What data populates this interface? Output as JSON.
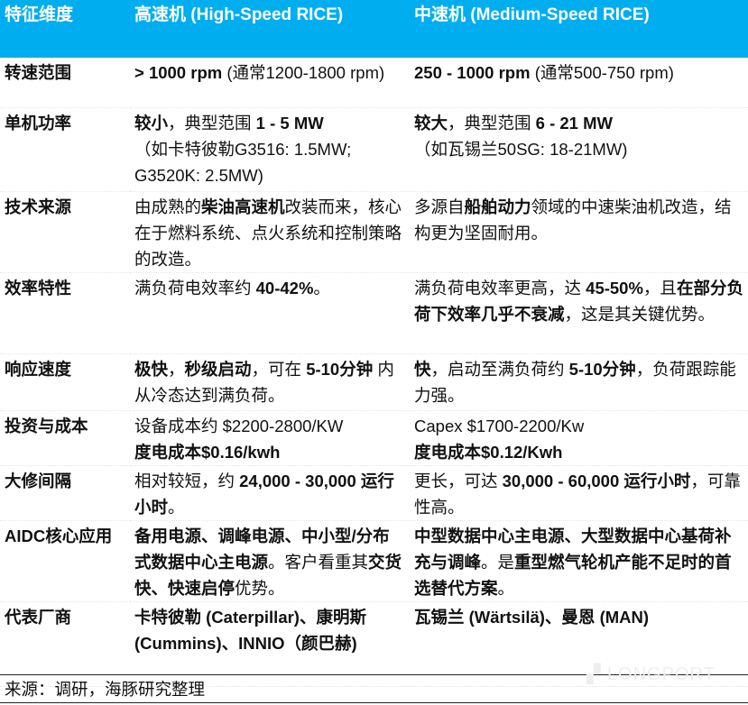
{
  "header": {
    "col1": "特征维度",
    "col2": "高速机 (High-Speed RICE)",
    "col3": "中速机 (Medium-Speed RICE)"
  },
  "rows": [
    {
      "label": "转速范围",
      "high": [
        {
          "t": "> 1000 rpm",
          "b": true
        },
        {
          "t": " (通常1200-1800 rpm)"
        }
      ],
      "medium": [
        {
          "t": "250 - 1000 rpm",
          "b": true
        },
        {
          "t": " (通常500-750 rpm)"
        }
      ]
    },
    {
      "label": "单机功率",
      "high": [
        {
          "t": "较小",
          "b": true
        },
        {
          "t": "，典型范围 "
        },
        {
          "t": "1 - 5 MW",
          "b": true
        },
        {
          "t": "\n（如卡特彼勒G3516: 1.5MW; G3520K: 2.5MW)"
        }
      ],
      "medium": [
        {
          "t": "较大",
          "b": true
        },
        {
          "t": "，典型范围 "
        },
        {
          "t": "6 - 21 MW",
          "b": true
        },
        {
          "t": "\n（如瓦锡兰50SG: 18-21MW)"
        }
      ]
    },
    {
      "label": "技术来源",
      "high": [
        {
          "t": "由成熟的"
        },
        {
          "t": "柴油高速机",
          "b": true
        },
        {
          "t": "改装而来，核心在于燃料系统、点火系统和控制策略的改造。"
        }
      ],
      "medium": [
        {
          "t": "多源自"
        },
        {
          "t": "船舶动力",
          "b": true
        },
        {
          "t": "领域的中速柴油机改造，结构更为坚固耐用。"
        }
      ]
    },
    {
      "label": "效率特性",
      "high": [
        {
          "t": "满负荷电效率约 "
        },
        {
          "t": "40-42%",
          "b": true
        },
        {
          "t": "。"
        }
      ],
      "medium": [
        {
          "t": "满负荷电效率更高，达 "
        },
        {
          "t": "45-50%",
          "b": true
        },
        {
          "t": "，且"
        },
        {
          "t": "在部分负荷下效率几乎不衰减",
          "b": true
        },
        {
          "t": "，这是其关键优势。"
        }
      ]
    },
    {
      "label": "响应速度",
      "high": [
        {
          "t": "极快",
          "b": true
        },
        {
          "t": "，"
        },
        {
          "t": "秒级启动",
          "b": true
        },
        {
          "t": "，可在 "
        },
        {
          "t": "5-10分钟",
          "b": true
        },
        {
          "t": " 内从冷态达到满负荷。"
        }
      ],
      "medium": [
        {
          "t": "快",
          "b": true
        },
        {
          "t": "，启动至满负荷约 "
        },
        {
          "t": "5-10分钟",
          "b": true
        },
        {
          "t": "，负荷跟踪能力强。"
        }
      ]
    },
    {
      "label": "投资与成本",
      "high": [
        {
          "t": "设备成本约 $2200-2800/KW\n"
        },
        {
          "t": "度电成本$0.16/kwh",
          "b": true
        }
      ],
      "medium": [
        {
          "t": "Capex $1700-2200/Kw\n"
        },
        {
          "t": "度电成本$0.12/Kwh",
          "b": true
        }
      ]
    },
    {
      "label": "大修间隔",
      "high": [
        {
          "t": "相对较短，约 "
        },
        {
          "t": "24,000 - 30,000 运行小时",
          "b": true
        },
        {
          "t": "。"
        }
      ],
      "medium": [
        {
          "t": "更长，可达 "
        },
        {
          "t": "30,000 - 60,000 运行小时",
          "b": true
        },
        {
          "t": "，可靠性高。"
        }
      ]
    },
    {
      "label": "AIDC核心应用",
      "high": [
        {
          "t": "备用电源、调峰电源、中小型/分布式数据中心主电源",
          "b": true
        },
        {
          "t": "。客户看重其"
        },
        {
          "t": "交货快、快速启停",
          "b": true
        },
        {
          "t": "优势。"
        }
      ],
      "medium": [
        {
          "t": "中型数据中心主电源、大型数据中心基荷补充与调峰",
          "b": true
        },
        {
          "t": "。是"
        },
        {
          "t": "重型燃气轮机产能不足时的首选替代方案",
          "b": true
        },
        {
          "t": "。"
        }
      ]
    },
    {
      "label": "代表厂商",
      "high": [
        {
          "t": "卡特彼勒 (Caterpillar)、康明斯 (Cummins)、INNIO（颜巴赫)",
          "b": true
        }
      ],
      "medium": [
        {
          "t": "瓦锡兰 (Wärtsilä)、曼恩 (MAN)",
          "b": true
        }
      ]
    }
  ],
  "source": "来源：调研，海豚研究整理",
  "watermark": "LONGPORT",
  "colors": {
    "header_bg": "#00aeef",
    "header_text": "#ffffff"
  }
}
